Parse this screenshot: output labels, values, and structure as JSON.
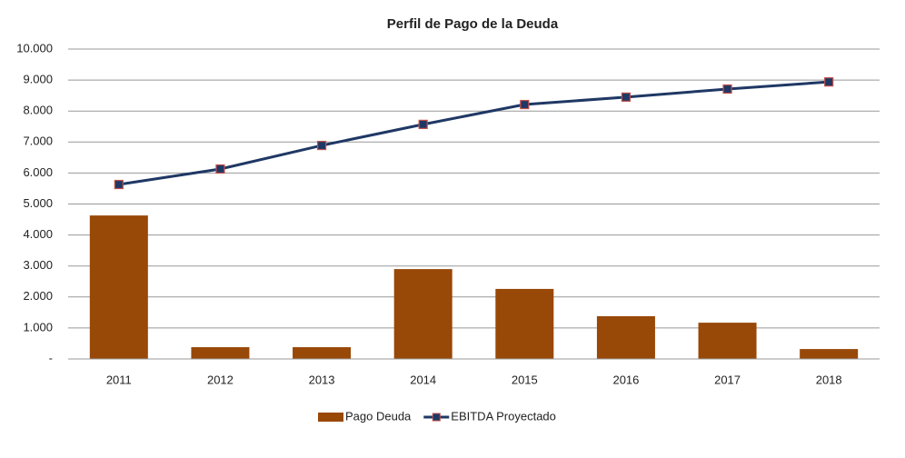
{
  "chart_data": {
    "type": "bar",
    "title": "Perfil de Pago de la Deuda",
    "categories": [
      "2011",
      "2012",
      "2013",
      "2014",
      "2015",
      "2016",
      "2017",
      "2018"
    ],
    "series": [
      {
        "name": "Pago Deuda",
        "type": "bar",
        "color": "#984807",
        "values": [
          4630,
          380,
          380,
          2900,
          2260,
          1380,
          1170,
          320
        ]
      },
      {
        "name": "EBITDA Proyectado",
        "type": "line",
        "color": "#1f3864",
        "marker_edge": "#c0504d",
        "values": [
          5630,
          6130,
          6890,
          7570,
          8210,
          8450,
          8710,
          8940
        ]
      }
    ],
    "ylim": [
      0,
      10000
    ],
    "yticks": [
      {
        "value": 0,
        "label": "-"
      },
      {
        "value": 1000,
        "label": "1.000"
      },
      {
        "value": 2000,
        "label": "2.000"
      },
      {
        "value": 3000,
        "label": "3.000"
      },
      {
        "value": 4000,
        "label": "4.000"
      },
      {
        "value": 5000,
        "label": "5.000"
      },
      {
        "value": 6000,
        "label": "6.000"
      },
      {
        "value": 7000,
        "label": "7.000"
      },
      {
        "value": 8000,
        "label": "8.000"
      },
      {
        "value": 9000,
        "label": "9.000"
      },
      {
        "value": 10000,
        "label": "10.000"
      }
    ],
    "grid": true,
    "legend": "bottom"
  }
}
